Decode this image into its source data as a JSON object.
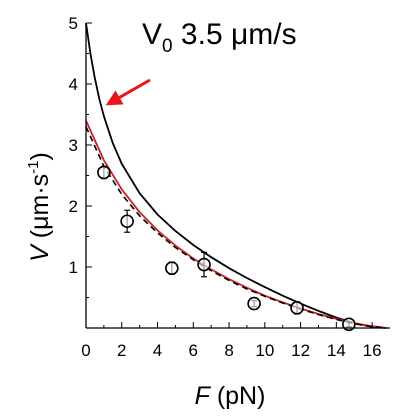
{
  "chart_data": {
    "type": "scatter",
    "xlabel": "F",
    "xlabel_unit": "(pN)",
    "ylabel": "V",
    "ylabel_unit_prefix": "(μm·s",
    "ylabel_unit_exp": "-1",
    "ylabel_unit_suffix": ")",
    "xlim": [
      0,
      17
    ],
    "ylim": [
      0,
      5
    ],
    "x_ticks": [
      0,
      2,
      4,
      6,
      8,
      10,
      12,
      14,
      16
    ],
    "y_ticks": [
      1,
      2,
      3,
      4,
      5
    ],
    "grid": false,
    "annotation": {
      "main": "V",
      "sub": "0",
      "rest": " 3.5 μm/s",
      "arrow_color": "#e8151b",
      "points_to": {
        "x": 1.1,
        "y": 3.65
      }
    },
    "points": [
      {
        "x": 1.0,
        "y": 2.55,
        "err": 0.1
      },
      {
        "x": 2.3,
        "y": 1.75,
        "err": 0.18
      },
      {
        "x": 4.8,
        "y": 0.98,
        "err": 0.1
      },
      {
        "x": 6.6,
        "y": 1.04,
        "err": 0.2
      },
      {
        "x": 9.4,
        "y": 0.4,
        "err": 0.05
      },
      {
        "x": 11.8,
        "y": 0.33,
        "err": 0.1
      },
      {
        "x": 14.7,
        "y": 0.06,
        "err": 0.04
      }
    ],
    "series": [
      {
        "style": "solid",
        "color": "#000000",
        "x": [
          0,
          0.25,
          0.5,
          0.75,
          1,
          1.5,
          2,
          3,
          4,
          5,
          6,
          7,
          8,
          9,
          10,
          11,
          12,
          13,
          14,
          15,
          16,
          16.8
        ],
        "y": [
          5.0,
          4.49,
          4.09,
          3.75,
          3.47,
          3.03,
          2.69,
          2.21,
          1.86,
          1.59,
          1.36,
          1.16,
          0.98,
          0.82,
          0.67,
          0.53,
          0.4,
          0.28,
          0.17,
          0.08,
          0.02,
          0.0
        ]
      },
      {
        "style": "solid",
        "color": "#c8232a",
        "x": [
          0,
          1,
          2,
          3,
          4,
          5,
          6,
          7,
          8,
          9,
          10,
          11,
          12,
          13,
          14,
          15,
          16,
          16.8
        ],
        "y": [
          3.4,
          2.75,
          2.27,
          1.9,
          1.6,
          1.35,
          1.14,
          0.96,
          0.8,
          0.66,
          0.53,
          0.42,
          0.32,
          0.23,
          0.15,
          0.08,
          0.03,
          0.0
        ]
      },
      {
        "style": "dashed",
        "color": "#000000",
        "x": [
          0,
          1,
          2,
          3,
          4,
          5,
          6,
          7,
          8,
          9,
          10,
          11,
          12,
          13,
          14,
          15,
          16,
          16.8
        ],
        "y": [
          3.3,
          2.65,
          2.19,
          1.84,
          1.56,
          1.32,
          1.12,
          0.94,
          0.78,
          0.64,
          0.52,
          0.41,
          0.31,
          0.22,
          0.14,
          0.07,
          0.02,
          0.0
        ]
      }
    ]
  }
}
